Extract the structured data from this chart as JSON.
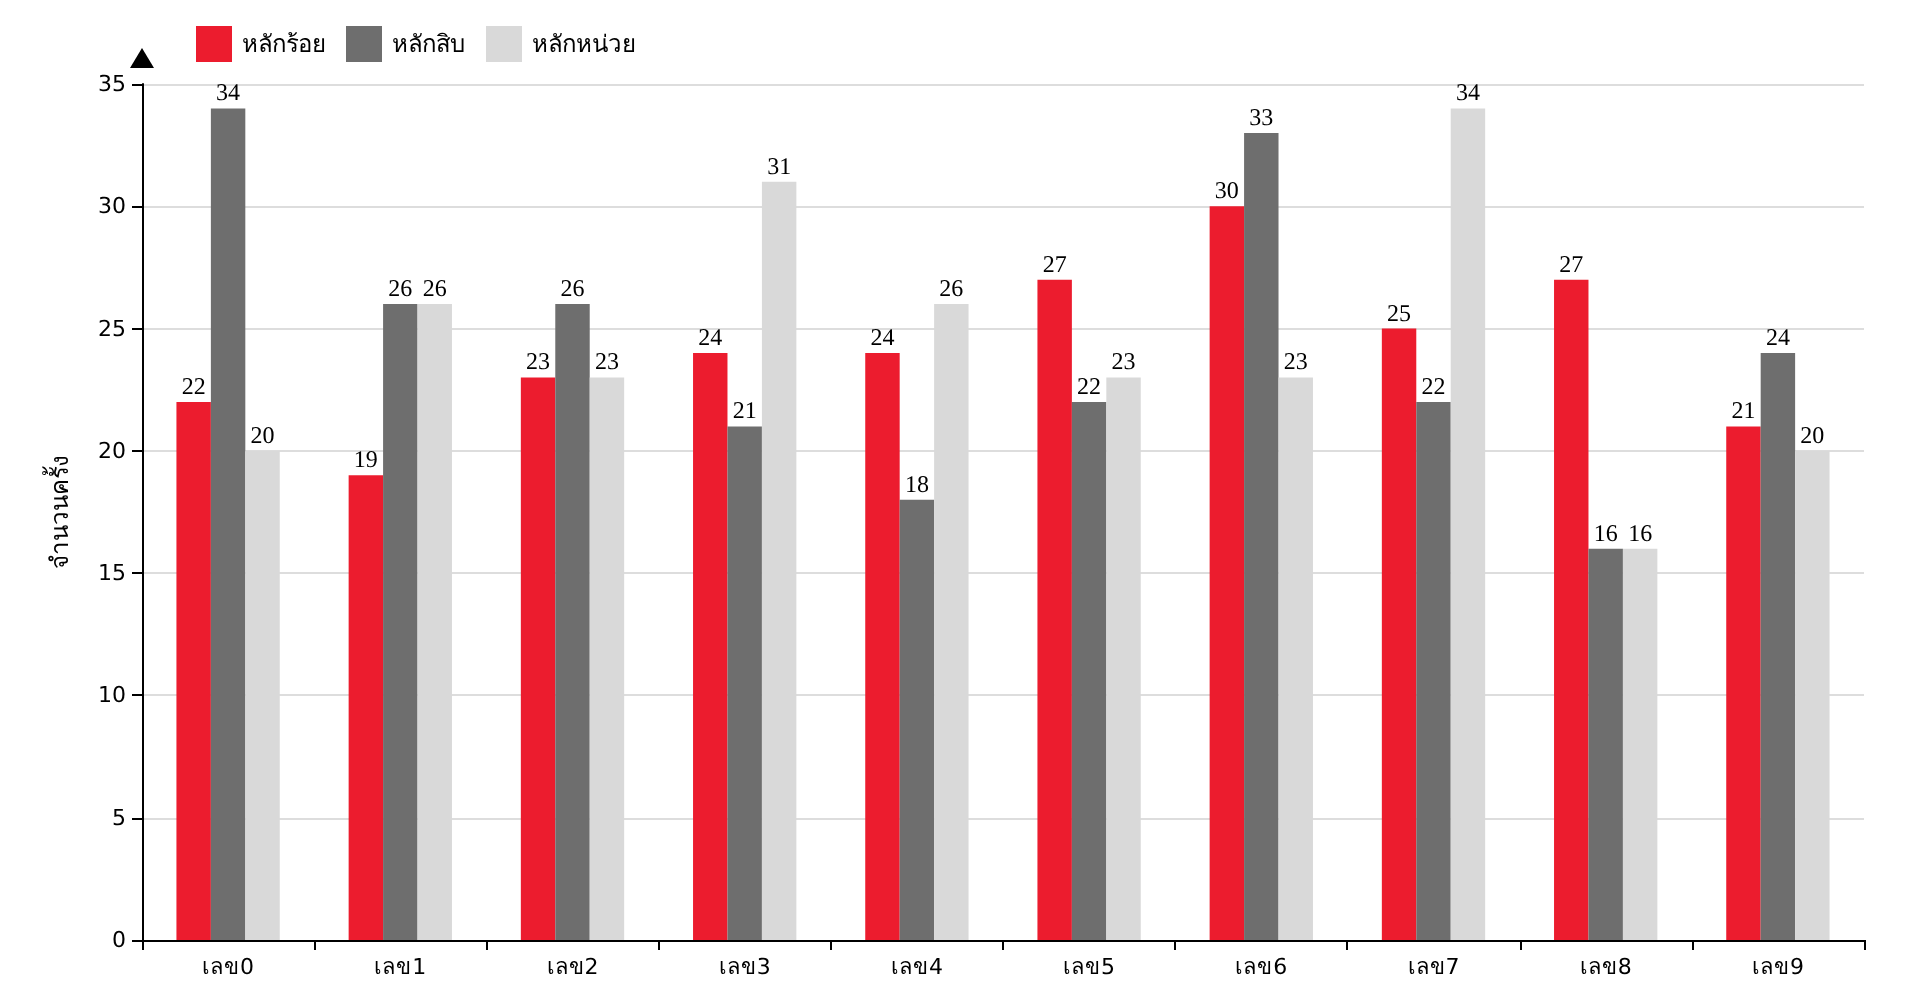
{
  "chart_data": {
    "type": "bar",
    "ylabel": "จำนวนครั้ง",
    "categories": [
      "เลข0",
      "เลข1",
      "เลข2",
      "เลข3",
      "เลข4",
      "เลข5",
      "เลข6",
      "เลข7",
      "เลข8",
      "เลข9"
    ],
    "series": [
      {
        "name": "หลักร้อย",
        "color": "#ec1c2e",
        "values": [
          22,
          19,
          23,
          24,
          24,
          27,
          30,
          25,
          27,
          21
        ]
      },
      {
        "name": "หลักสิบ",
        "color": "#6e6e6e",
        "values": [
          34,
          26,
          26,
          21,
          18,
          22,
          33,
          22,
          16,
          24
        ]
      },
      {
        "name": "หลักหน่วย",
        "color": "#d9d9d9",
        "values": [
          20,
          26,
          23,
          31,
          26,
          23,
          23,
          34,
          16,
          20
        ]
      }
    ],
    "ylim": [
      0,
      35
    ],
    "yticks": [
      0,
      5,
      10,
      15,
      20,
      25,
      30,
      35
    ],
    "grid": "y",
    "legend": "top left",
    "data_labels": true
  }
}
